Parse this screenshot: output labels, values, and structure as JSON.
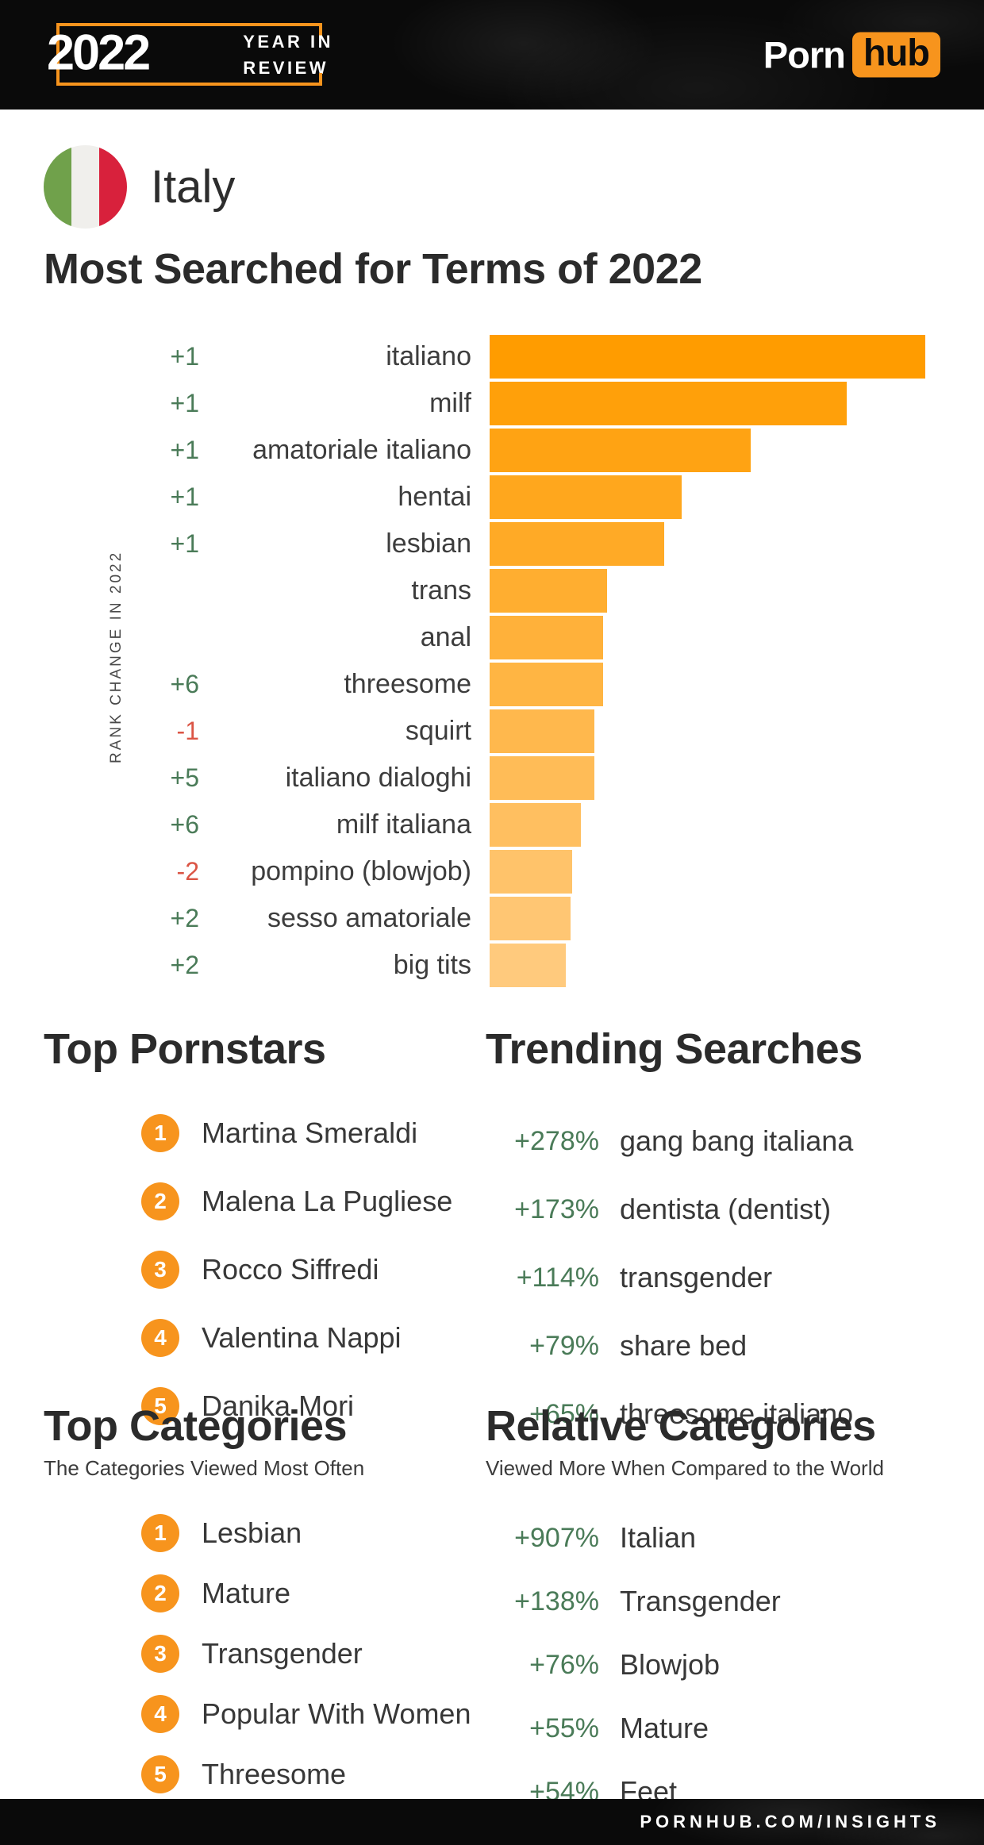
{
  "header": {
    "year": "2022",
    "year_in": "YEAR IN",
    "review": "REVIEW",
    "brand_porn": "Porn",
    "brand_hub": "hub"
  },
  "country": {
    "name": "Italy"
  },
  "chart_data": {
    "type": "bar",
    "title": "Most Searched for Terms of 2022",
    "ylabel": "RANK CHANGE IN 2022",
    "xlabel": "",
    "orientation": "horizontal",
    "grid": false,
    "legend": false,
    "xlim": [
      0,
      100
    ],
    "categories": [
      "italiano",
      "milf",
      "amatoriale italiano",
      "hentai",
      "lesbian",
      "trans",
      "anal",
      "threesome",
      "squirt",
      "italiano dialoghi",
      "milf italiana",
      "pompino (blowjob)",
      "sesso amatoriale",
      "big tits"
    ],
    "values": [
      100,
      82,
      60,
      44,
      40,
      27,
      26,
      26,
      24,
      24,
      21,
      19,
      18.5,
      17.5
    ],
    "rank_changes": [
      "+1",
      "+1",
      "+1",
      "+1",
      "+1",
      "",
      "",
      "+6",
      "-1",
      "+5",
      "+6",
      "-2",
      "+2",
      "+2"
    ],
    "bar_colors": [
      "#FF9C00",
      "#FFA00A",
      "#FFA313",
      "#FFA71D",
      "#FFAA26",
      "#FFAE30",
      "#FFB13A",
      "#FFB543",
      "#FFB84D",
      "#FFBC57",
      "#FFBF60",
      "#FFC36A",
      "#FFC673",
      "#FFCA7D"
    ]
  },
  "sections": {
    "top_pornstars": {
      "title": "Top Pornstars",
      "items": [
        "Martina Smeraldi",
        "Malena La Pugliese",
        "Rocco Siffredi",
        "Valentina Nappi",
        "Danika Mori"
      ]
    },
    "trending_searches": {
      "title": "Trending Searches",
      "items": [
        {
          "pct": "+278%",
          "term": "gang bang italiana"
        },
        {
          "pct": "+173%",
          "term": "dentista (dentist)"
        },
        {
          "pct": "+114%",
          "term": "transgender"
        },
        {
          "pct": "+79%",
          "term": "share bed"
        },
        {
          "pct": "+65%",
          "term": "threesome italiano"
        }
      ]
    },
    "top_categories": {
      "title": "Top Categories",
      "subtitle": "The Categories Viewed Most Often",
      "items": [
        "Lesbian",
        "Mature",
        "Transgender",
        "Popular With Women",
        "Threesome"
      ]
    },
    "relative_categories": {
      "title": "Relative Categories",
      "subtitle": "Viewed More When Compared to the World",
      "items": [
        {
          "pct": "+907%",
          "term": "Italian"
        },
        {
          "pct": "+138%",
          "term": "Transgender"
        },
        {
          "pct": "+76%",
          "term": "Blowjob"
        },
        {
          "pct": "+55%",
          "term": "Mature"
        },
        {
          "pct": "+54%",
          "term": "Feet"
        }
      ]
    }
  },
  "footer": {
    "url": "PORNHUB.COM/INSIGHTS"
  },
  "colors": {
    "accent_orange": "#F7941D",
    "positive_green": "#4A7B58",
    "negative_red": "#DB5545",
    "flag_green": "#70A14B",
    "flag_red": "#D8213C",
    "text_dark": "#2B2B2B"
  }
}
